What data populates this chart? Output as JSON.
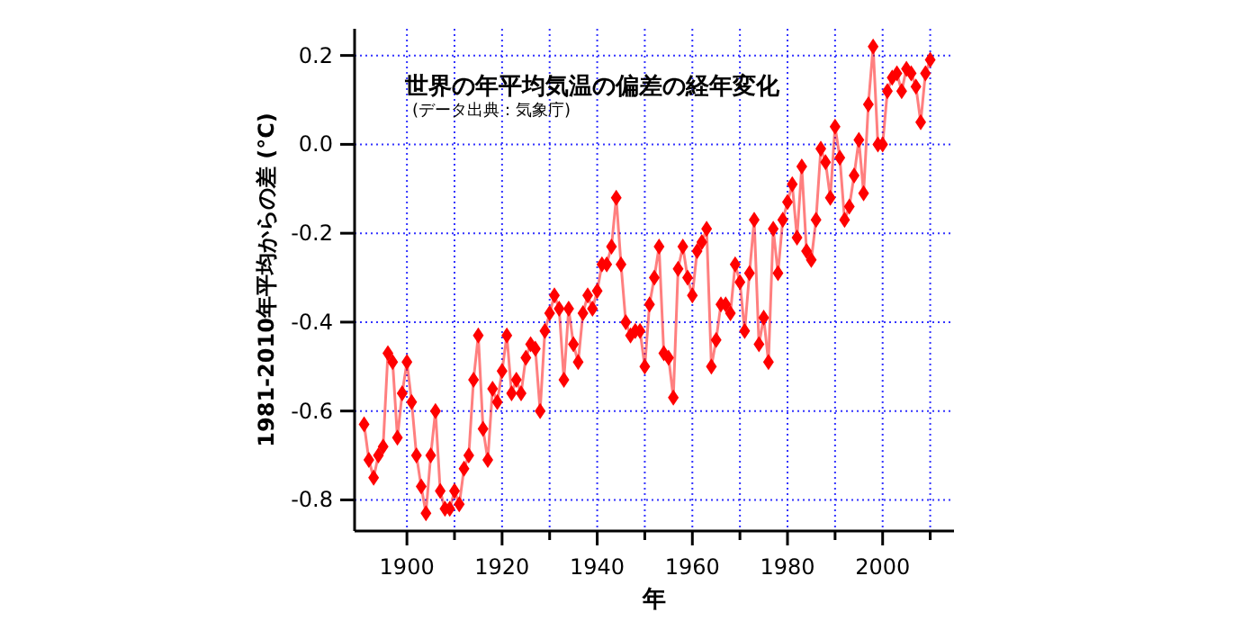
{
  "chart_data": {
    "type": "line",
    "title": "世界の年平均気温の偏差の経年変化",
    "subtitle": "(データ出典：気象庁)",
    "xlabel": "年",
    "ylabel": "1981-2010年平均からの差 (°C)",
    "xlim": [
      1889,
      2015
    ],
    "ylim": [
      -0.87,
      0.26
    ],
    "xticks": [
      1900,
      {
        "value": 1910,
        "label": null
      },
      1920,
      {
        "value": 1930,
        "label": null
      },
      1940,
      {
        "value": 1950,
        "label": null
      },
      1960,
      {
        "value": 1970,
        "label": null
      },
      1980,
      {
        "value": 1990,
        "label": null
      },
      2000,
      {
        "value": 2010,
        "label": null
      }
    ],
    "yticks": [
      {
        "value": -0.8,
        "label": "-0.8"
      },
      {
        "value": -0.6,
        "label": "-0.6"
      },
      {
        "value": -0.4,
        "label": "-0.4"
      },
      {
        "value": -0.2,
        "label": "-0.2"
      },
      {
        "value": 0,
        "label": "0.0"
      },
      {
        "value": 0.2,
        "label": "0.2"
      }
    ],
    "grid": true,
    "marker": "diamond",
    "line_style": "solid",
    "series": [
      {
        "color": "#ff0000",
        "x": [
          1891,
          1892,
          1893,
          1894,
          1895,
          1896,
          1897,
          1898,
          1899,
          1900,
          1901,
          1902,
          1903,
          1904,
          1905,
          1906,
          1907,
          1908,
          1909,
          1910,
          1911,
          1912,
          1913,
          1914,
          1915,
          1916,
          1917,
          1918,
          1919,
          1920,
          1921,
          1922,
          1923,
          1924,
          1925,
          1926,
          1927,
          1928,
          1929,
          1930,
          1931,
          1932,
          1933,
          1934,
          1935,
          1936,
          1937,
          1938,
          1939,
          1940,
          1941,
          1942,
          1943,
          1944,
          1945,
          1946,
          1947,
          1948,
          1949,
          1950,
          1951,
          1952,
          1953,
          1954,
          1955,
          1956,
          1957,
          1958,
          1959,
          1960,
          1961,
          1962,
          1963,
          1964,
          1965,
          1966,
          1967,
          1968,
          1969,
          1970,
          1971,
          1972,
          1973,
          1974,
          1975,
          1976,
          1977,
          1978,
          1979,
          1980,
          1981,
          1982,
          1983,
          1984,
          1985,
          1986,
          1987,
          1988,
          1989,
          1990,
          1991,
          1992,
          1993,
          1994,
          1995,
          1996,
          1997,
          1998,
          1999,
          2000,
          2001,
          2002,
          2003,
          2004,
          2005,
          2006,
          2007,
          2008,
          2009,
          2010
        ],
        "values": [
          -0.63,
          -0.71,
          -0.75,
          -0.7,
          -0.68,
          -0.47,
          -0.49,
          -0.66,
          -0.56,
          -0.49,
          -0.58,
          -0.7,
          -0.77,
          -0.83,
          -0.7,
          -0.6,
          -0.78,
          -0.82,
          -0.82,
          -0.78,
          -0.81,
          -0.73,
          -0.7,
          -0.53,
          -0.43,
          -0.64,
          -0.71,
          -0.55,
          -0.58,
          -0.51,
          -0.43,
          -0.56,
          -0.53,
          -0.56,
          -0.48,
          -0.45,
          -0.46,
          -0.6,
          -0.42,
          -0.38,
          -0.34,
          -0.37,
          -0.53,
          -0.37,
          -0.45,
          -0.49,
          -0.38,
          -0.34,
          -0.37,
          -0.33,
          -0.27,
          -0.27,
          -0.23,
          -0.12,
          -0.27,
          -0.4,
          -0.43,
          -0.42,
          -0.42,
          -0.5,
          -0.36,
          -0.3,
          -0.23,
          -0.47,
          -0.48,
          -0.57,
          -0.28,
          -0.23,
          -0.3,
          -0.34,
          -0.24,
          -0.22,
          -0.19,
          -0.5,
          -0.44,
          -0.36,
          -0.36,
          -0.38,
          -0.27,
          -0.31,
          -0.42,
          -0.29,
          -0.17,
          -0.45,
          -0.39,
          -0.49,
          -0.19,
          -0.29,
          -0.17,
          -0.13,
          -0.09,
          -0.21,
          -0.05,
          -0.24,
          -0.26,
          -0.17,
          -0.01,
          -0.04,
          -0.12,
          0.04,
          -0.03,
          -0.17,
          -0.14,
          -0.07,
          0.01,
          -0.11,
          0.09,
          0.22,
          0.0,
          0.0,
          0.12,
          0.15,
          0.16,
          0.12,
          0.17,
          0.16,
          0.13,
          0.05,
          0.16,
          0.19
        ]
      }
    ]
  }
}
